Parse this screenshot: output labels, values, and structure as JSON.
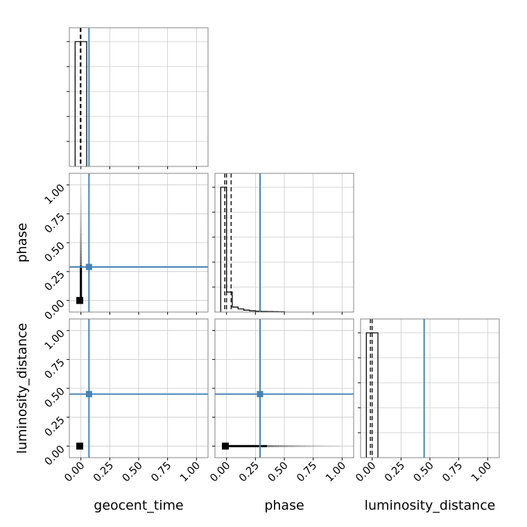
{
  "chart_data": {
    "type": "corner",
    "parameters": [
      "geocent_time",
      "phase",
      "luminosity_distance"
    ],
    "axis_range": [
      -0.1,
      1.1
    ],
    "tick_values": [
      0.0,
      0.25,
      0.5,
      0.75,
      1.0
    ],
    "tick_labels": [
      "0.00",
      "0.25",
      "0.50",
      "0.75",
      "1.00"
    ],
    "grid": true,
    "truth_color": "#4682b4",
    "truths": {
      "geocent_time": 0.07,
      "phase": 0.29,
      "luminosity_distance": 0.45
    },
    "histograms": {
      "geocent_time": {
        "bins": [
          -0.05,
          0.0,
          0.05
        ],
        "counts": [
          1.0,
          1.0
        ],
        "quantiles": [
          -0.005,
          0.0
        ]
      },
      "phase": {
        "bins": [
          -0.05,
          0.0,
          0.05,
          0.1,
          0.15,
          0.2,
          0.25,
          0.3,
          0.35,
          0.4,
          0.45,
          0.5
        ],
        "counts": [
          1.0,
          0.16,
          0.04,
          0.025,
          0.015,
          0.01,
          0.007,
          0.005,
          0.004,
          0.003,
          0.002
        ],
        "quantiles": [
          -0.015,
          0.0,
          0.04
        ]
      },
      "luminosity_distance": {
        "bins": [
          -0.05,
          0.0,
          0.05
        ],
        "counts": [
          1.0,
          1.0
        ],
        "quantiles": [
          -0.015,
          0.0
        ]
      }
    },
    "scatter": {
      "phase_vs_geocent_time": {
        "peak": [
          -0.01,
          0.0
        ],
        "tail": {
          "x": 0.0,
          "y_from": 0.0,
          "y_to": 0.97
        }
      },
      "luminosity_distance_vs_geocent_time": {
        "peak": [
          -0.01,
          0.0
        ]
      },
      "luminosity_distance_vs_phase": {
        "peak": [
          -0.01,
          0.0
        ],
        "tail": {
          "y": 0.0,
          "x_from": 0.0,
          "x_to": 0.97
        }
      }
    }
  }
}
